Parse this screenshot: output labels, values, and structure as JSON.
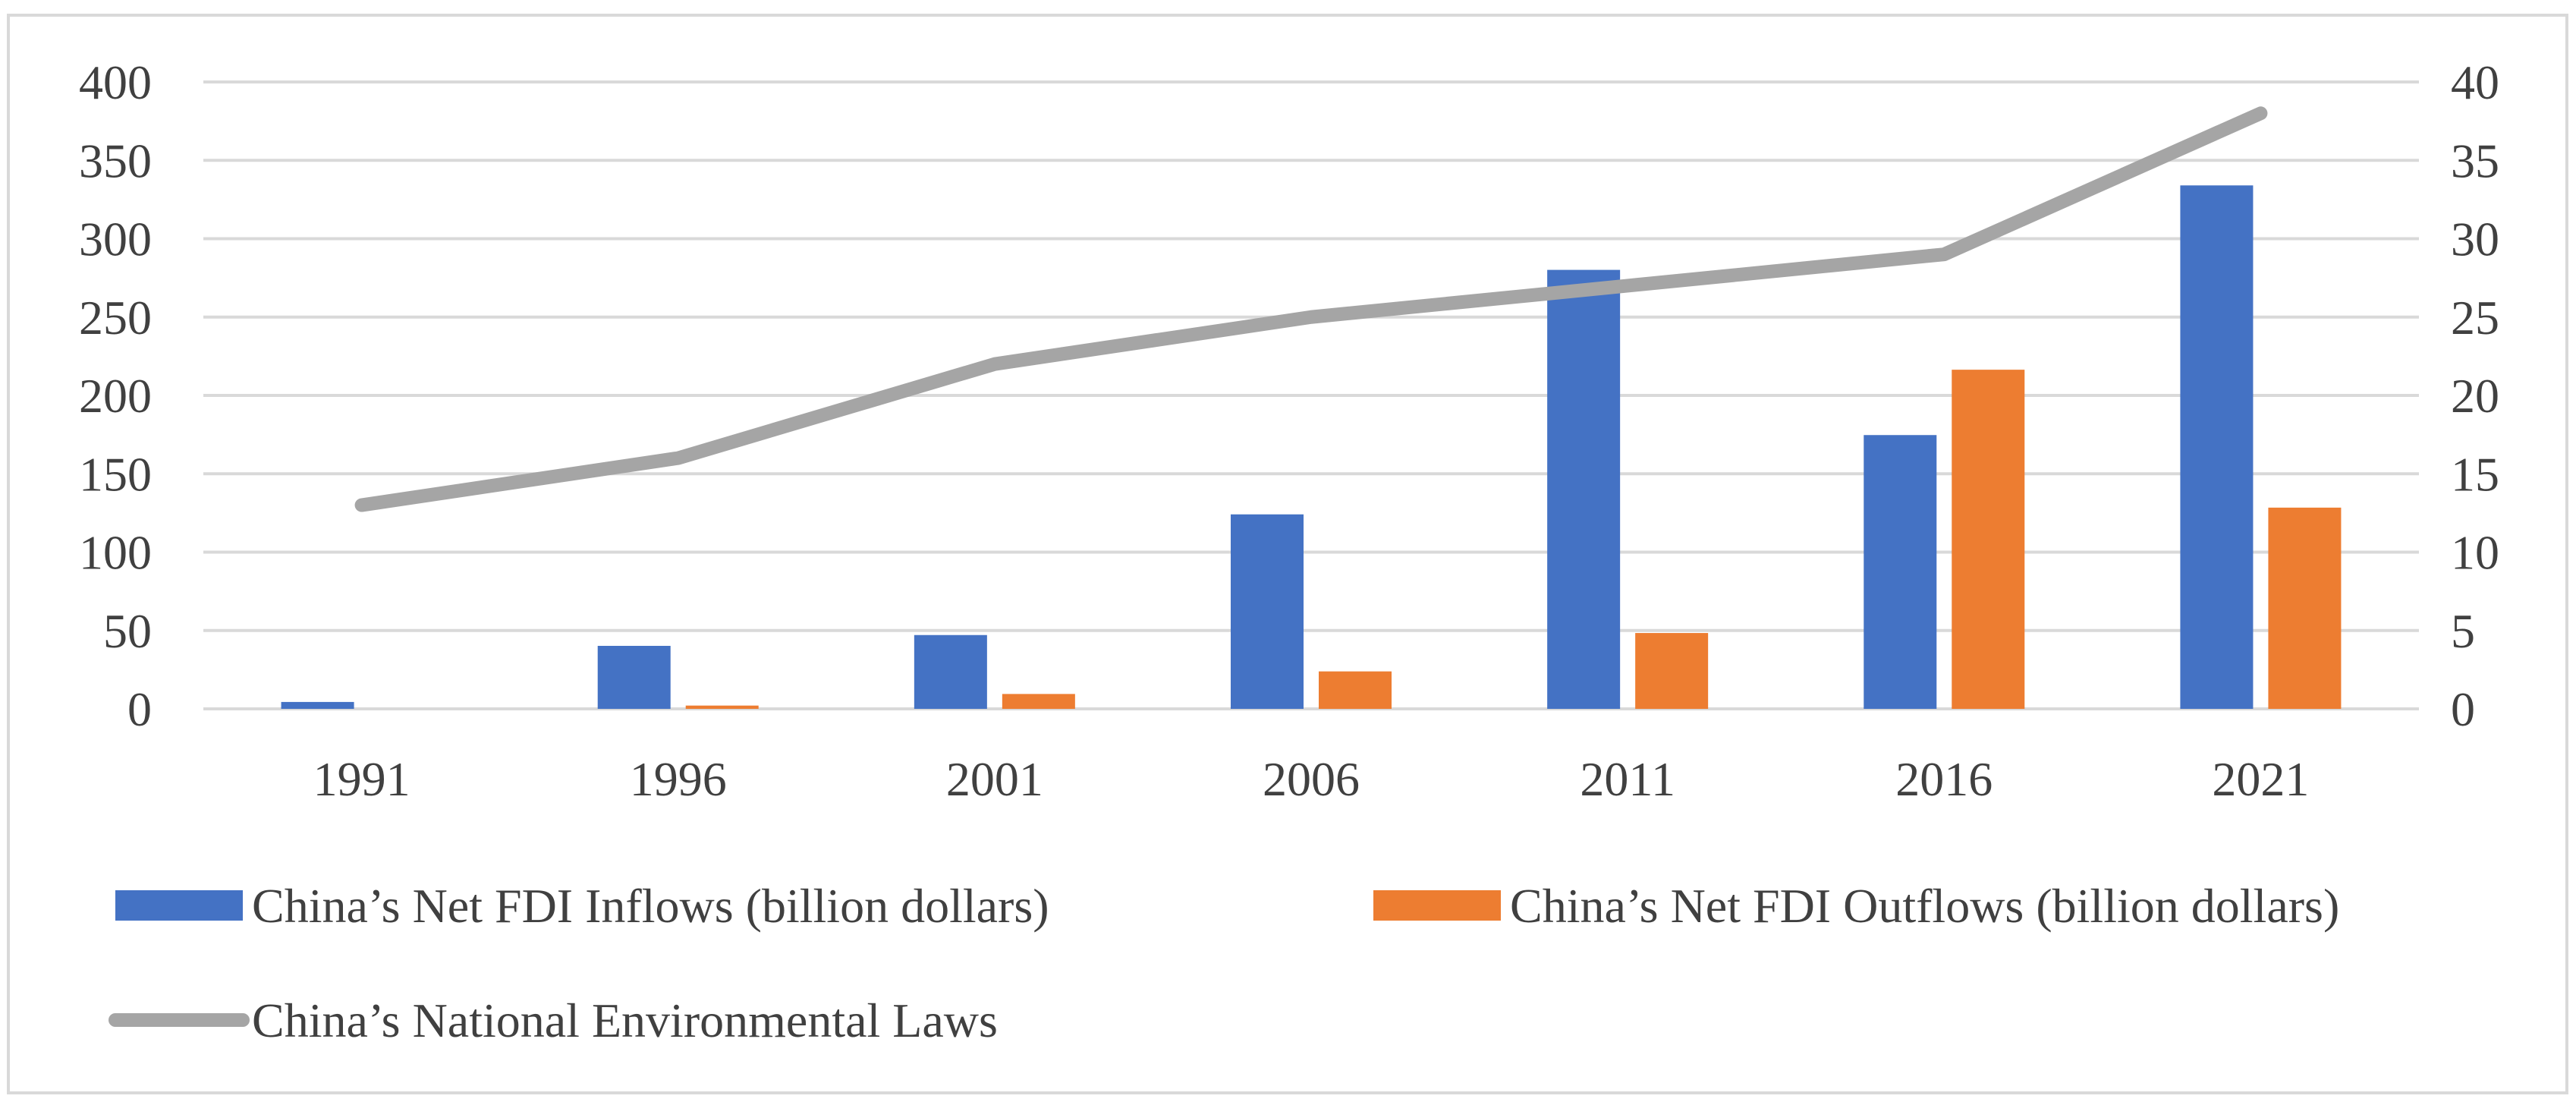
{
  "chart_data": {
    "type": "bar",
    "categories": [
      "1991",
      "1996",
      "2001",
      "2006",
      "2011",
      "2016",
      "2021"
    ],
    "series": [
      {
        "name": "China’s Net FDI Inflows (billion dollars)",
        "kind": "bar",
        "axis": "left",
        "color": "#4472C4",
        "values": [
          4.4,
          40.2,
          47.1,
          124.1,
          280.1,
          174.7,
          334.0
        ]
      },
      {
        "name": "China’s Net FDI Outflows (billion dollars)",
        "kind": "bar",
        "axis": "left",
        "color": "#ED7D31",
        "values": [
          0,
          2.1,
          9.5,
          23.9,
          48.4,
          216.4,
          128.4
        ]
      },
      {
        "name": "China’s National Environmental Laws",
        "kind": "line",
        "axis": "right",
        "color": "#A5A5A5",
        "values": [
          13,
          16,
          22,
          25,
          27,
          29,
          38
        ]
      }
    ],
    "y_left": {
      "min": 0,
      "max": 400,
      "ticks": [
        "0",
        "50",
        "100",
        "150",
        "200",
        "250",
        "300",
        "350",
        "400"
      ]
    },
    "y_right": {
      "min": 0,
      "max": 40,
      "ticks": [
        "0",
        "5",
        "10",
        "15",
        "20",
        "25",
        "30",
        "35",
        "40"
      ]
    },
    "grid": true,
    "legend_position": "bottom",
    "title": "",
    "xlabel": "",
    "ylabel": ""
  }
}
